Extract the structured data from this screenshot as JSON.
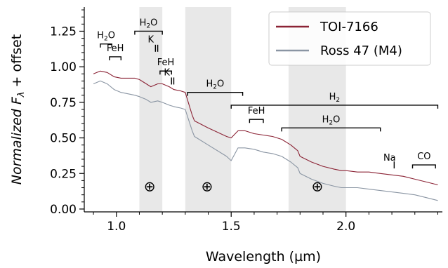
{
  "chart_data": {
    "type": "line",
    "xlabel": "Wavelength (µm)",
    "ylabel_main": "Normalized F",
    "ylabel_sub": "λ",
    "ylabel_tail": " + offset",
    "xlim": [
      0.86,
      2.42
    ],
    "ylim": [
      -0.02,
      1.42
    ],
    "x_ticks": [
      {
        "value": 1.0,
        "label": "1.0"
      },
      {
        "value": 1.5,
        "label": "1.5"
      },
      {
        "value": 2.0,
        "label": "2.0"
      }
    ],
    "y_ticks": [
      {
        "value": 0.0,
        "label": "0.00"
      },
      {
        "value": 0.25,
        "label": "0.25"
      },
      {
        "value": 0.5,
        "label": "0.50"
      },
      {
        "value": 0.75,
        "label": "0.75"
      },
      {
        "value": 1.0,
        "label": "1.00"
      },
      {
        "value": 1.25,
        "label": "1.25"
      }
    ],
    "shaded_regions": [
      [
        1.1,
        1.2
      ],
      [
        1.3,
        1.5
      ],
      [
        1.75,
        2.0
      ]
    ],
    "telluric_symbols": [
      {
        "x": 1.145,
        "y": 0.16,
        "text": "⊕"
      },
      {
        "x": 1.395,
        "y": 0.16,
        "text": "⊕"
      },
      {
        "x": 1.875,
        "y": 0.16,
        "text": "⊕"
      }
    ],
    "legend": {
      "position": "top-right",
      "entries": [
        {
          "label": "TOI-7166",
          "color": "#8b2335"
        },
        {
          "label": "Ross 47 (M4)",
          "color": "#8a95a3"
        }
      ]
    },
    "series": [
      {
        "name": "TOI-7166",
        "color": "#8b2335",
        "x": [
          0.9,
          0.93,
          0.96,
          0.99,
          1.02,
          1.05,
          1.08,
          1.1,
          1.13,
          1.15,
          1.18,
          1.2,
          1.23,
          1.25,
          1.28,
          1.3,
          1.33,
          1.34,
          1.4,
          1.48,
          1.5,
          1.53,
          1.56,
          1.6,
          1.64,
          1.68,
          1.72,
          1.76,
          1.79,
          1.8,
          1.85,
          1.9,
          1.95,
          1.98,
          2.0,
          2.05,
          2.1,
          2.15,
          2.2,
          2.25,
          2.3,
          2.35,
          2.4
        ],
        "y": [
          0.95,
          0.97,
          0.96,
          0.93,
          0.92,
          0.92,
          0.92,
          0.91,
          0.88,
          0.86,
          0.88,
          0.88,
          0.86,
          0.84,
          0.83,
          0.82,
          0.66,
          0.62,
          0.57,
          0.51,
          0.5,
          0.55,
          0.55,
          0.53,
          0.52,
          0.51,
          0.49,
          0.45,
          0.41,
          0.37,
          0.33,
          0.3,
          0.28,
          0.27,
          0.27,
          0.26,
          0.26,
          0.25,
          0.24,
          0.23,
          0.21,
          0.19,
          0.17
        ]
      },
      {
        "name": "Ross 47 (M4)",
        "color": "#8a95a3",
        "x": [
          0.9,
          0.93,
          0.96,
          0.99,
          1.02,
          1.05,
          1.08,
          1.1,
          1.13,
          1.15,
          1.18,
          1.2,
          1.23,
          1.25,
          1.28,
          1.3,
          1.33,
          1.34,
          1.4,
          1.48,
          1.5,
          1.53,
          1.56,
          1.6,
          1.64,
          1.68,
          1.72,
          1.76,
          1.79,
          1.8,
          1.85,
          1.9,
          1.95,
          1.98,
          2.0,
          2.05,
          2.1,
          2.15,
          2.2,
          2.25,
          2.3,
          2.35,
          2.4
        ],
        "y": [
          0.88,
          0.9,
          0.88,
          0.84,
          0.82,
          0.81,
          0.8,
          0.79,
          0.77,
          0.75,
          0.76,
          0.75,
          0.73,
          0.72,
          0.71,
          0.7,
          0.55,
          0.51,
          0.45,
          0.37,
          0.34,
          0.43,
          0.43,
          0.42,
          0.4,
          0.39,
          0.37,
          0.33,
          0.29,
          0.25,
          0.21,
          0.18,
          0.16,
          0.15,
          0.15,
          0.15,
          0.14,
          0.13,
          0.12,
          0.11,
          0.1,
          0.08,
          0.06
        ]
      }
    ],
    "annotations": [
      {
        "label": "H2O",
        "main": "H",
        "sub": "2",
        "tail": "O",
        "bracket": [
          0.93,
          0.98
        ],
        "y": 1.16,
        "label_x": 0.955,
        "label_y": 1.2,
        "tickdir": "down"
      },
      {
        "label": "FeH",
        "main": "FeH",
        "sub": "",
        "tail": "",
        "bracket": [
          0.97,
          1.02
        ],
        "y": 1.07,
        "label_x": 0.995,
        "label_y": 1.11,
        "tickdir": "down"
      },
      {
        "label": "H2O",
        "main": "H",
        "sub": "2",
        "tail": "O",
        "bracket": [
          1.08,
          1.2
        ],
        "y": 1.25,
        "label_x": 1.14,
        "label_y": 1.29,
        "tickdir": "down"
      },
      {
        "label": "K",
        "main": "K",
        "sub": "",
        "tail": "",
        "bracket": [
          1.17,
          1.18
        ],
        "y": 1.13,
        "label_x": 1.15,
        "label_y": 1.17,
        "tickdir": "double"
      },
      {
        "label": "FeH",
        "main": "FeH",
        "sub": "",
        "tail": "",
        "bracket": [
          1.19,
          1.24
        ],
        "y": 0.97,
        "label_x": 1.215,
        "label_y": 1.01,
        "tickdir": "down"
      },
      {
        "label": "K",
        "main": "K",
        "sub": "",
        "tail": "",
        "bracket": [
          1.24,
          1.25
        ],
        "y": 0.9,
        "label_x": 1.22,
        "label_y": 0.94,
        "tickdir": "double"
      },
      {
        "label": "H2O",
        "main": "H",
        "sub": "2",
        "tail": "O",
        "bracket": [
          1.31,
          1.55
        ],
        "y": 0.82,
        "label_x": 1.43,
        "label_y": 0.86,
        "tickdir": "down"
      },
      {
        "label": "H2",
        "main": "H",
        "sub": "2",
        "tail": "",
        "bracket": [
          1.5,
          2.4
        ],
        "y": 0.73,
        "label_x": 1.95,
        "label_y": 0.77,
        "tickdir": "down"
      },
      {
        "label": "FeH",
        "main": "FeH",
        "sub": "",
        "tail": "",
        "bracket": [
          1.58,
          1.64
        ],
        "y": 0.63,
        "label_x": 1.61,
        "label_y": 0.67,
        "tickdir": "down"
      },
      {
        "label": "H2O",
        "main": "H",
        "sub": "2",
        "tail": "O",
        "bracket": [
          1.72,
          2.15
        ],
        "y": 0.57,
        "label_x": 1.935,
        "label_y": 0.61,
        "tickdir": "down"
      },
      {
        "label": "Na",
        "main": "Na",
        "sub": "",
        "tail": "",
        "bracket": [
          2.21,
          2.21
        ],
        "y": 0.31,
        "label_x": 2.19,
        "label_y": 0.34,
        "tickdir": "double"
      },
      {
        "label": "CO",
        "main": "CO",
        "sub": "",
        "tail": "",
        "bracket": [
          2.29,
          2.39
        ],
        "y": 0.31,
        "label_x": 2.34,
        "label_y": 0.35,
        "tickdir": "down"
      }
    ]
  }
}
